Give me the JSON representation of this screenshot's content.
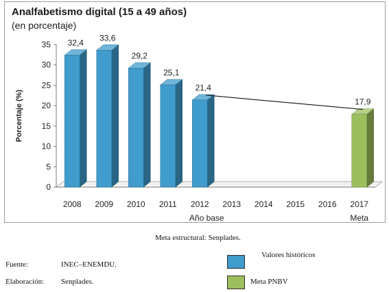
{
  "chart_data": {
    "type": "bar",
    "title": "Analfabetismo digital (15 a 49 años)",
    "subtitle": "(en porcentaje)",
    "ylabel": "Porcentaje (%)",
    "ylim": [
      0,
      35
    ],
    "yticks": [
      "0",
      "5",
      "10",
      "15",
      "20",
      "25",
      "30",
      "35"
    ],
    "categories": [
      "2008",
      "2009",
      "2010",
      "2011",
      "2012",
      "2013",
      "2014",
      "2015",
      "2016",
      "2017"
    ],
    "category_sublabels": {
      "2012": "Año base",
      "2017": "Meta"
    },
    "series": [
      {
        "name": "Valores históricos",
        "color": "#3f9ccc",
        "values": [
          32.4,
          33.6,
          29.2,
          25.1,
          21.4,
          null,
          null,
          null,
          null,
          null
        ],
        "labels": [
          "32,4",
          "33,6",
          "29,2",
          "25,1",
          "21,4",
          "",
          "",
          "",
          "",
          ""
        ]
      },
      {
        "name": "Meta PNBV",
        "color": "#9cbf5e",
        "values": [
          null,
          null,
          null,
          null,
          null,
          null,
          null,
          null,
          null,
          17.9
        ],
        "labels": [
          "",
          "",
          "",
          "",
          "",
          "",
          "",
          "",
          "",
          "17,9"
        ]
      }
    ],
    "trend_line": {
      "from": "2012",
      "from_value": 21.4,
      "to": "2017",
      "to_value": 17.9
    },
    "grid": false
  },
  "footer": {
    "note": "Meta estructural: Senplades.",
    "source_label": "Fuente:",
    "source_value": "INEC–ENEMDU.",
    "elaboration_label": "Elaboración:",
    "elaboration_value": "Senplades.",
    "legend": [
      {
        "label": "Valores históricos",
        "color": "#3f9ccc"
      },
      {
        "label": "Meta PNBV",
        "color": "#9cbf5e"
      }
    ]
  }
}
